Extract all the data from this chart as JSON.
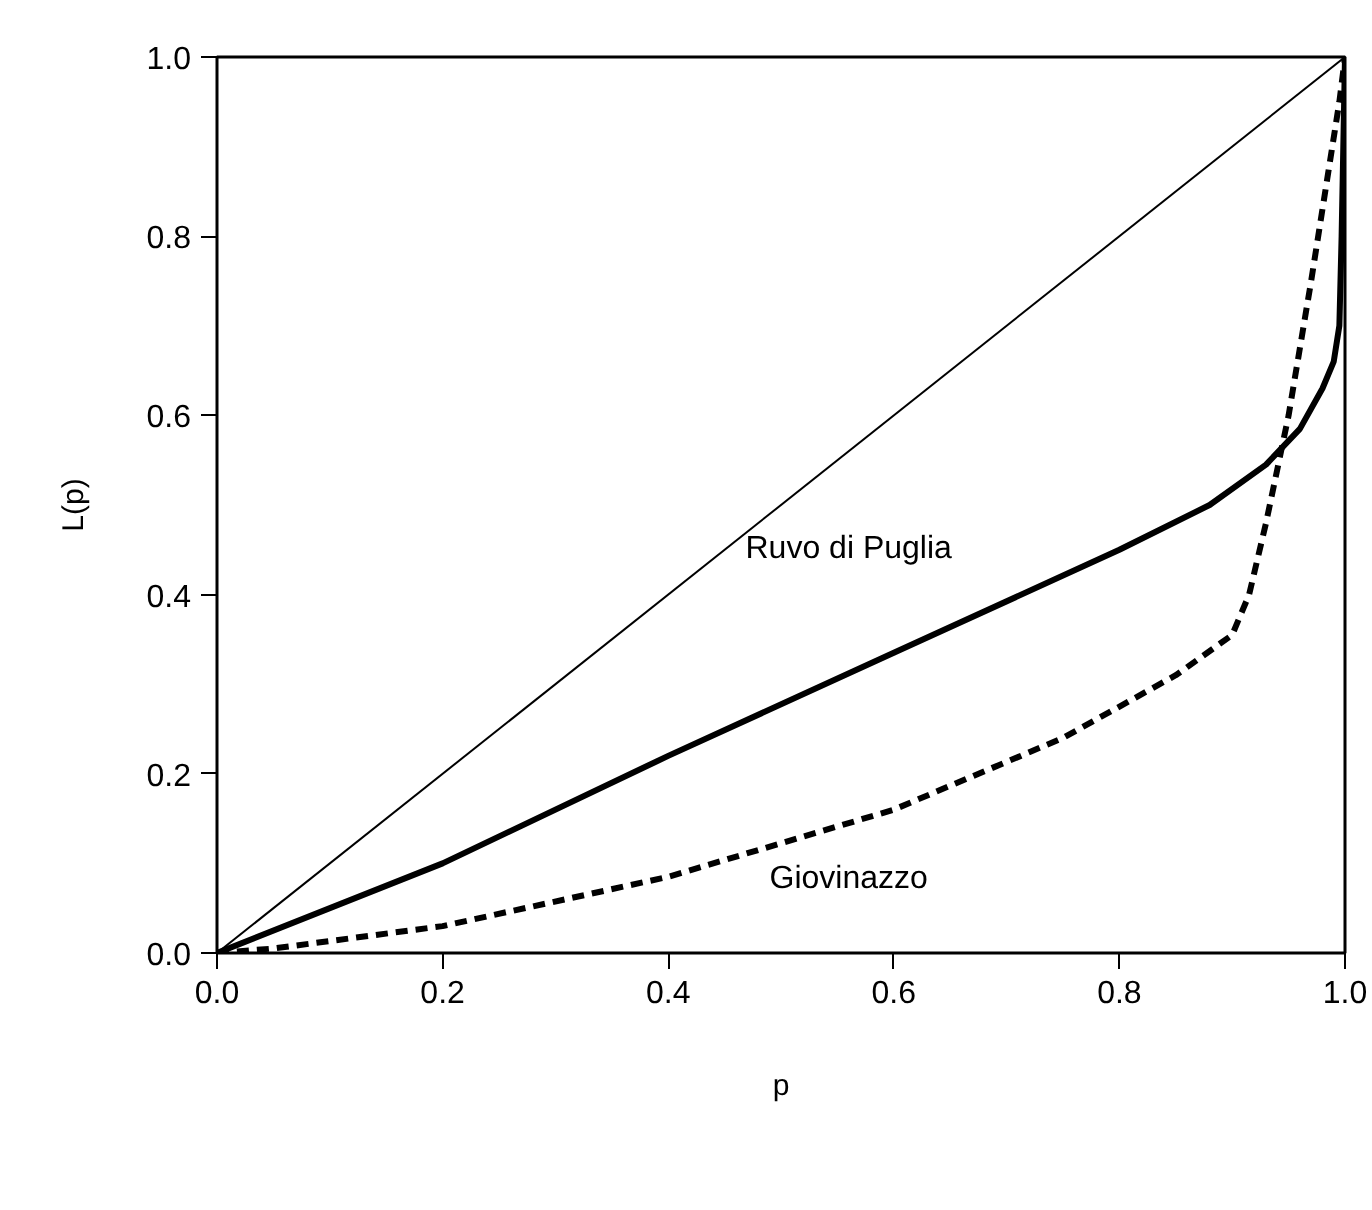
{
  "chart_data": {
    "type": "line",
    "xlabel": "p",
    "ylabel": "L(p)",
    "xlim": [
      0,
      1
    ],
    "ylim": [
      0,
      1
    ],
    "xticks": [
      {
        "value": 0,
        "label": "0.0"
      },
      0.2,
      0.4,
      0.6,
      0.8,
      {
        "value": 1,
        "label": "1.0"
      }
    ],
    "yticks": [
      {
        "value": 0,
        "label": "0.0"
      },
      0.2,
      0.4,
      0.6,
      0.8,
      {
        "value": 1,
        "label": "1.0"
      }
    ],
    "grid": false,
    "line_style": "solid",
    "series": [
      {
        "color": "#000000",
        "x": [
          0,
          1
        ],
        "values": [
          0,
          1
        ]
      },
      {
        "name": "Ruvo di Puglia",
        "color": "#000000",
        "x": [
          0,
          0.2,
          0.4,
          0.6,
          0.8,
          0.88,
          0.93,
          0.96,
          0.98,
          0.99,
          0.995,
          0.997,
          1
        ],
        "values": [
          0,
          0.1,
          0.22,
          0.335,
          0.45,
          0.5,
          0.545,
          0.585,
          0.63,
          0.66,
          0.7,
          0.8,
          1
        ]
      },
      {
        "name": "Giovinazzo",
        "color": "#000000",
        "line_style": "dashed",
        "x": [
          0,
          0.05,
          0.2,
          0.4,
          0.6,
          0.75,
          0.85,
          0.9,
          0.915,
          0.93,
          0.95,
          0.97,
          0.985,
          0.995,
          1
        ],
        "values": [
          0,
          0.005,
          0.03,
          0.085,
          0.16,
          0.24,
          0.31,
          0.355,
          0.4,
          0.48,
          0.6,
          0.75,
          0.87,
          0.95,
          1
        ]
      }
    ]
  }
}
